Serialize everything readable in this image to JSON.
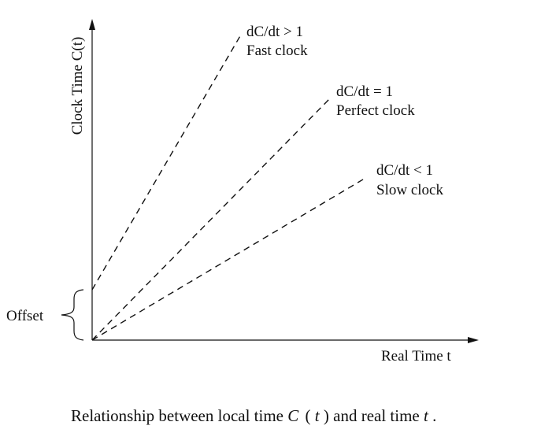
{
  "y_axis_label": "Clock Time C(t)",
  "x_axis_label": "Real Time t",
  "offset_label": "Offset",
  "lines": [
    {
      "rate": "dC/dt > 1",
      "name": "Fast clock"
    },
    {
      "rate": "dC/dt = 1",
      "name": "Perfect clock"
    },
    {
      "rate": "dC/dt < 1",
      "name": "Slow clock"
    }
  ],
  "caption": {
    "prefix": "Relationship between local time ",
    "func": "C",
    "lparen": "(",
    "arg": "t",
    "rparen": ")",
    "middle": " and real time ",
    "var": "t",
    "end": "."
  }
}
